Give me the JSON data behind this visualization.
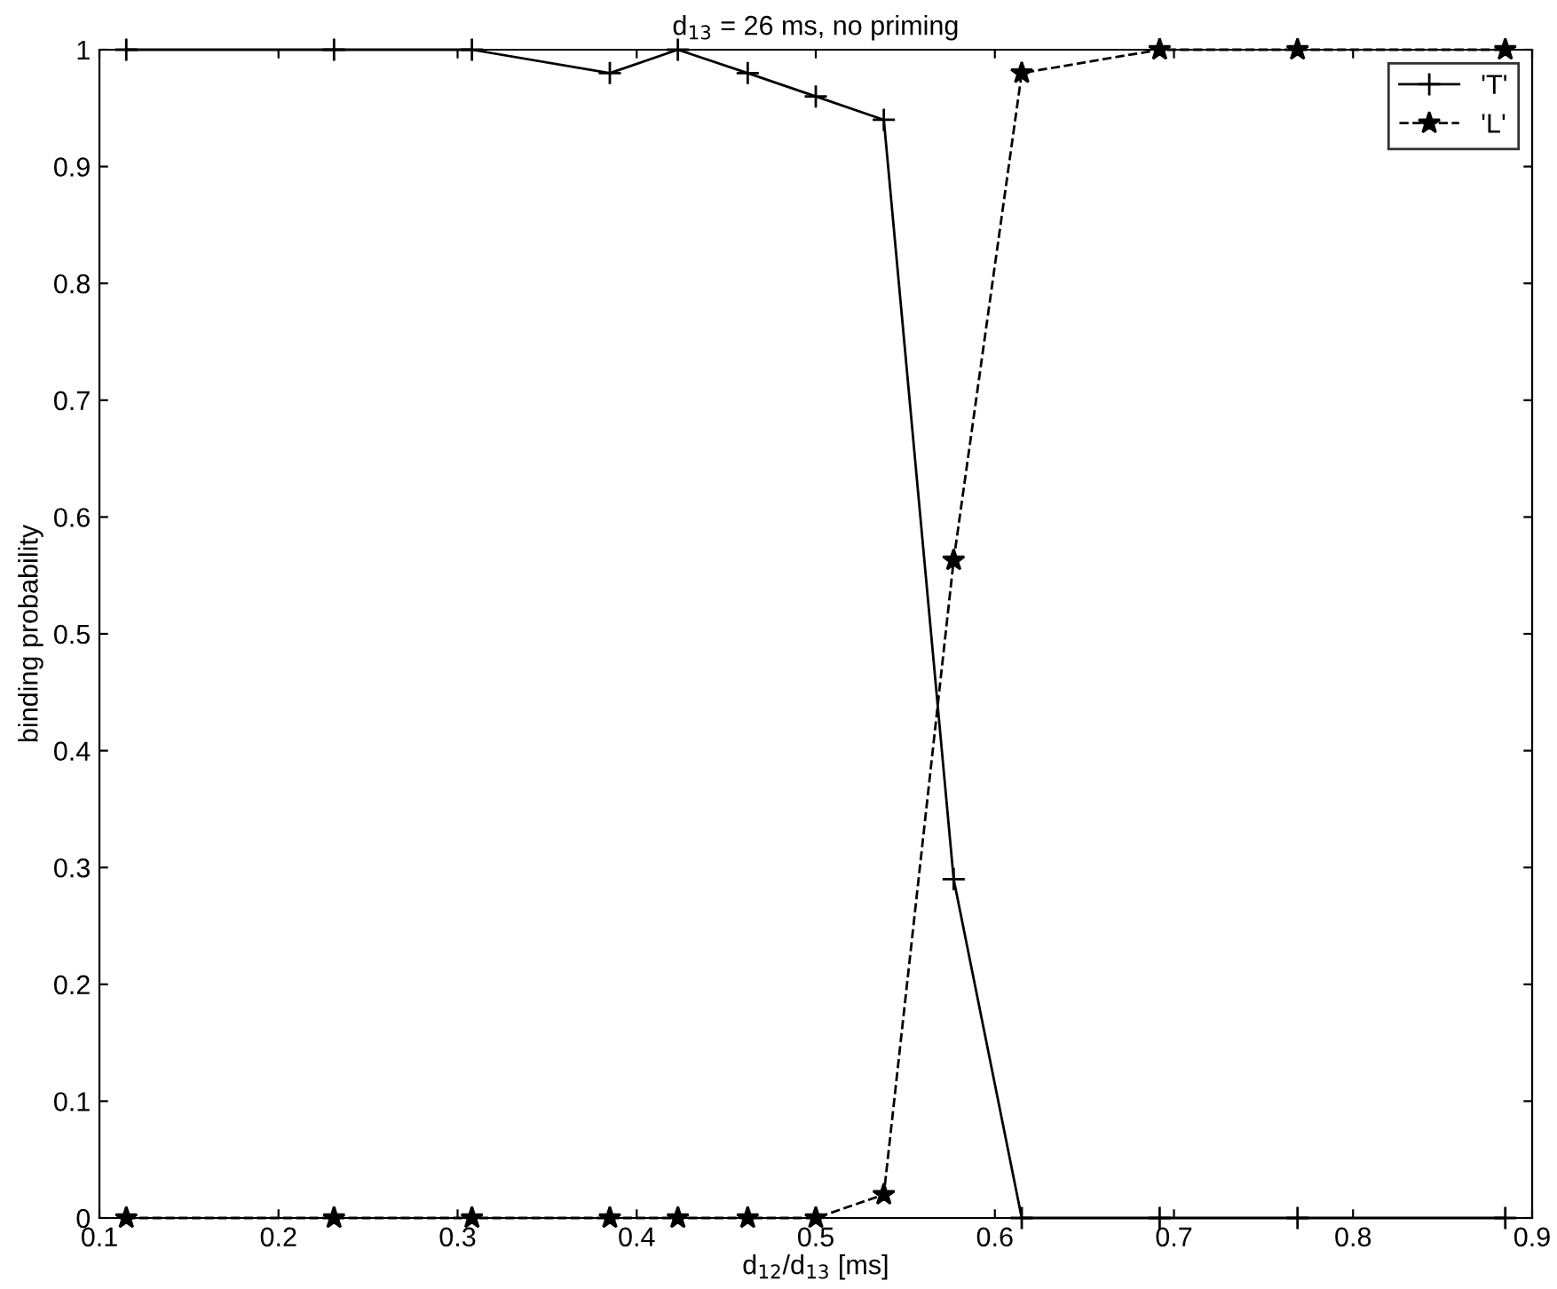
{
  "chart_data": {
    "type": "line",
    "title": "d$_{13}$ = 26 ms, no priming",
    "xlabel": "d$_{12}$/d$_{13}$ [ms]",
    "ylabel": "binding probability",
    "x": [
      0.115,
      0.231,
      0.308,
      0.385,
      0.423,
      0.462,
      0.5,
      0.538,
      0.577,
      0.615,
      0.692,
      0.769,
      0.885
    ],
    "series": [
      {
        "name": "'T'",
        "color": "#000000",
        "marker": "cross",
        "line_style": "solid",
        "values": [
          1,
          1,
          1,
          0.98,
          1,
          0.98,
          0.96,
          0.94,
          0.29,
          0,
          0,
          0,
          0
        ]
      },
      {
        "name": "'L'",
        "color": "#000000",
        "marker": "star",
        "line_style": "dashed",
        "values": [
          0,
          0,
          0,
          0,
          0,
          0,
          0,
          0.02,
          0.563,
          0.98,
          1,
          1,
          1
        ]
      }
    ],
    "xlim": [
      0.1,
      0.9
    ],
    "xticks": [
      0.1,
      0.2,
      0.3,
      0.4,
      0.5,
      0.6,
      0.7,
      0.8,
      0.9
    ],
    "ylim": [
      0,
      1
    ],
    "yticks": [
      0,
      0.1,
      0.2,
      0.3,
      0.4,
      0.5,
      0.6,
      0.7,
      0.8,
      0.9,
      1
    ],
    "grid": false,
    "legend": "top right"
  }
}
